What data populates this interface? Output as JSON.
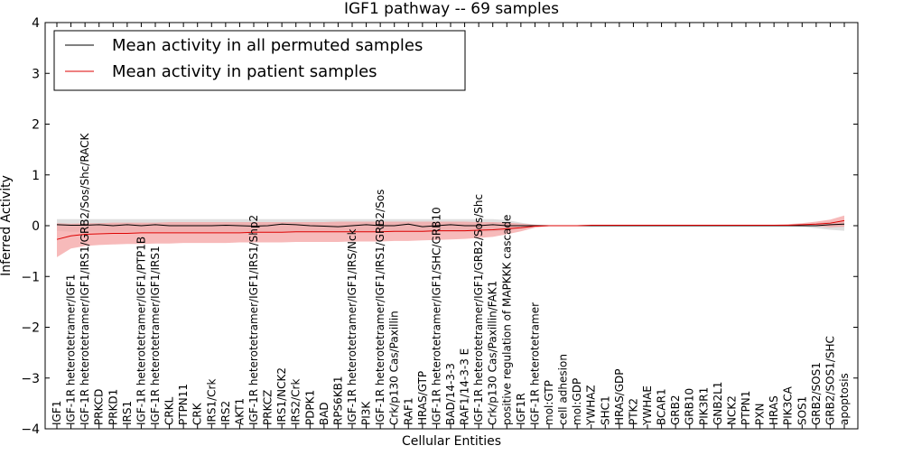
{
  "chart_data": {
    "type": "line",
    "title": "IGF1 pathway -- 69 samples",
    "xlabel": "Cellular Entities",
    "ylabel": "Inferred Activity",
    "ylim": [
      -4,
      4
    ],
    "yticks": [
      "−4",
      "−3",
      "−2",
      "−1",
      "0",
      "1",
      "2",
      "3",
      "4"
    ],
    "legend": {
      "placement": "top-left",
      "entries": [
        {
          "label": "Mean activity in all permuted samples",
          "color": "#000000"
        },
        {
          "label": "Mean activity in patient samples",
          "color": "#dd0000"
        }
      ]
    },
    "colors": {
      "permuted_line": "#000000",
      "permuted_band": "#d9d9d9",
      "patient_line": "#dd0000",
      "patient_band": "#f4a3a3"
    },
    "categories": [
      "IGF1",
      "IGF-1R heterotetramer/IGF1",
      "IGF-1R heterotetramer/IGF1/IRS1/GRB2/Sos/Shc/RACK",
      "PRKCD",
      "PRKD1",
      "IRS1",
      "IGF-1R heterotetramer/IGF1/PTP1B",
      "IGF-1R heterotetramer/IGF1/IRS1",
      "CRKL",
      "PTPN11",
      "CRK",
      "IRS1/Crk",
      "IRS2",
      "AKT1",
      "IGF-1R heterotetramer/IGF1/IRS1/Shp2",
      "PRKCZ",
      "IRS1/NCK2",
      "IRS2/Crk",
      "PDPK1",
      "BAD",
      "RPS6KB1",
      "IGF-1R heterotetramer/IGF1/IRS/Nck",
      "PI3K",
      "IGF-1R heterotetramer/IGF1/IRS1/GRB2/Sos",
      "Crk/p130 Cas/Paxillin",
      "RAF1",
      "HRAS/GTP",
      "IGF-1R heterotetramer/IGF1/SHC/GRB10",
      "BAD/14-3-3",
      "RAF1/14-3-3 E",
      "IGF-1R heterotetramer/IGF1/GRB2/Sos/Shc",
      "Crk/p130 Cas/Paxillin/FAK1",
      "positive regulation of MAPKKK cascade",
      "IGF1R",
      "IGF-1R heterotetramer",
      "mol:GTP",
      "cell adhesion",
      "mol:GDP",
      "YWHAZ",
      "SHC1",
      "HRAS/GDP",
      "PTK2",
      "YWHAE",
      "BCAR1",
      "GRB2",
      "GRB10",
      "PIK3R1",
      "GNB2L1",
      "NCK2",
      "PTPN1",
      "PXN",
      "HRAS",
      "PIK3CA",
      "SOS1",
      "GRB2/SOS1",
      "GRB2/SOS1/SHC",
      "apoptosis"
    ],
    "series": [
      {
        "name": "Mean activity in all permuted samples",
        "values": [
          0.02,
          0.01,
          0.01,
          0.02,
          0.0,
          0.02,
          0.0,
          0.02,
          0.0,
          0.0,
          0.0,
          0.0,
          0.01,
          0.0,
          -0.01,
          0.0,
          0.03,
          0.02,
          0.0,
          -0.01,
          -0.02,
          0.0,
          0.02,
          0.0,
          0.0,
          0.03,
          -0.02,
          0.0,
          0.02,
          0.0,
          0.0,
          0.02,
          0.0,
          0.0,
          0.0,
          0.0,
          0.0,
          0.0,
          0.0,
          0.0,
          0.0,
          0.0,
          0.0,
          0.0,
          0.0,
          0.0,
          0.0,
          0.0,
          0.0,
          0.0,
          0.0,
          0.0,
          0.0,
          0.0,
          0.0,
          0.02,
          0.03
        ],
        "lower": [
          -0.1,
          -0.12,
          -0.12,
          -0.12,
          -0.12,
          -0.12,
          -0.12,
          -0.12,
          -0.12,
          -0.12,
          -0.12,
          -0.12,
          -0.12,
          -0.12,
          -0.12,
          -0.12,
          -0.12,
          -0.12,
          -0.12,
          -0.12,
          -0.12,
          -0.12,
          -0.12,
          -0.12,
          -0.12,
          -0.12,
          -0.12,
          -0.12,
          -0.12,
          -0.12,
          -0.12,
          -0.12,
          -0.1,
          -0.05,
          -0.02,
          -0.01,
          -0.01,
          -0.01,
          -0.01,
          -0.01,
          -0.01,
          -0.01,
          -0.01,
          -0.01,
          -0.01,
          -0.01,
          -0.01,
          -0.01,
          -0.01,
          -0.01,
          -0.01,
          -0.01,
          -0.01,
          -0.02,
          -0.05,
          -0.08,
          -0.1
        ],
        "upper": [
          0.13,
          0.13,
          0.13,
          0.13,
          0.13,
          0.13,
          0.13,
          0.13,
          0.13,
          0.13,
          0.13,
          0.13,
          0.13,
          0.13,
          0.13,
          0.13,
          0.13,
          0.13,
          0.13,
          0.13,
          0.13,
          0.13,
          0.13,
          0.13,
          0.13,
          0.13,
          0.13,
          0.13,
          0.13,
          0.13,
          0.13,
          0.13,
          0.11,
          0.06,
          0.02,
          0.01,
          0.01,
          0.01,
          0.01,
          0.01,
          0.01,
          0.01,
          0.01,
          0.01,
          0.01,
          0.01,
          0.01,
          0.01,
          0.01,
          0.01,
          0.01,
          0.01,
          0.01,
          0.02,
          0.05,
          0.08,
          0.1
        ]
      },
      {
        "name": "Mean activity in patient samples",
        "values": [
          -0.27,
          -0.2,
          -0.17,
          -0.16,
          -0.15,
          -0.15,
          -0.14,
          -0.14,
          -0.14,
          -0.14,
          -0.14,
          -0.14,
          -0.14,
          -0.14,
          -0.13,
          -0.13,
          -0.13,
          -0.12,
          -0.12,
          -0.12,
          -0.12,
          -0.12,
          -0.12,
          -0.12,
          -0.11,
          -0.11,
          -0.11,
          -0.1,
          -0.1,
          -0.1,
          -0.09,
          -0.08,
          -0.06,
          -0.04,
          -0.01,
          0.0,
          0.0,
          0.0,
          0.01,
          0.01,
          0.01,
          0.01,
          0.01,
          0.01,
          0.01,
          0.01,
          0.01,
          0.01,
          0.01,
          0.01,
          0.01,
          0.01,
          0.01,
          0.02,
          0.03,
          0.05,
          0.1
        ],
        "lower": [
          -0.62,
          -0.45,
          -0.4,
          -0.38,
          -0.37,
          -0.36,
          -0.36,
          -0.35,
          -0.35,
          -0.34,
          -0.34,
          -0.34,
          -0.34,
          -0.33,
          -0.33,
          -0.33,
          -0.33,
          -0.32,
          -0.32,
          -0.32,
          -0.32,
          -0.31,
          -0.31,
          -0.31,
          -0.3,
          -0.3,
          -0.29,
          -0.28,
          -0.27,
          -0.26,
          -0.24,
          -0.22,
          -0.17,
          -0.11,
          -0.04,
          -0.01,
          0.0,
          0.0,
          0.0,
          0.0,
          0.0,
          0.0,
          0.0,
          0.0,
          0.0,
          0.0,
          0.0,
          0.0,
          0.0,
          0.0,
          0.0,
          0.0,
          0.0,
          0.0,
          -0.01,
          -0.03,
          -0.02
        ],
        "upper": [
          0.05,
          0.04,
          0.05,
          0.05,
          0.06,
          0.06,
          0.06,
          0.06,
          0.07,
          0.07,
          0.07,
          0.07,
          0.07,
          0.07,
          0.07,
          0.07,
          0.07,
          0.07,
          0.07,
          0.07,
          0.08,
          0.08,
          0.08,
          0.08,
          0.08,
          0.08,
          0.08,
          0.08,
          0.08,
          0.08,
          0.07,
          0.07,
          0.06,
          0.04,
          0.02,
          0.01,
          0.01,
          0.01,
          0.02,
          0.02,
          0.02,
          0.02,
          0.02,
          0.02,
          0.02,
          0.02,
          0.02,
          0.02,
          0.02,
          0.02,
          0.02,
          0.02,
          0.03,
          0.05,
          0.08,
          0.12,
          0.2
        ]
      }
    ]
  }
}
